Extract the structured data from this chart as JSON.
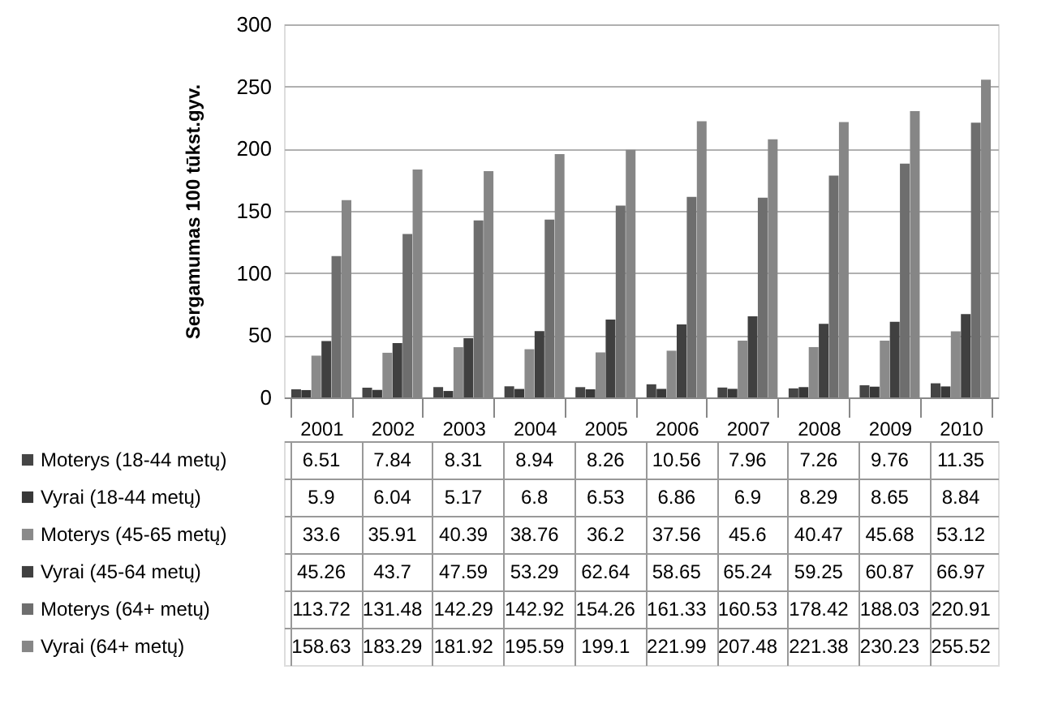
{
  "chart_data": {
    "type": "bar",
    "ylabel": "Sergamumas 100 tūkst.gyv.",
    "categories": [
      "2001",
      "2002",
      "2003",
      "2004",
      "2005",
      "2006",
      "2007",
      "2008",
      "2009",
      "2010"
    ],
    "series": [
      {
        "name": "Moterys (18-44 metų)",
        "color": "#454545",
        "values": [
          6.51,
          7.84,
          8.31,
          8.94,
          8.26,
          10.56,
          7.96,
          7.26,
          9.76,
          11.35
        ]
      },
      {
        "name": "Vyrai (18-44 metų)",
        "color": "#383838",
        "values": [
          5.9,
          6.04,
          5.17,
          6.8,
          6.53,
          6.86,
          6.9,
          8.29,
          8.65,
          8.84
        ]
      },
      {
        "name": "Moterys (45-65 metų)",
        "color": "#8a8a8a",
        "values": [
          33.6,
          35.91,
          40.39,
          38.76,
          36.2,
          37.56,
          45.6,
          40.47,
          45.68,
          53.12
        ]
      },
      {
        "name": "Vyrai (45-64 metų)",
        "color": "#404040",
        "values": [
          45.26,
          43.7,
          47.59,
          53.29,
          62.64,
          58.65,
          65.24,
          59.25,
          60.87,
          66.97
        ]
      },
      {
        "name": "Moterys (64+ metų)",
        "color": "#6e6e6e",
        "values": [
          113.72,
          131.48,
          142.29,
          142.92,
          154.26,
          161.33,
          160.53,
          178.42,
          188.03,
          220.91
        ]
      },
      {
        "name": "Vyrai (64+ metų)",
        "color": "#868686",
        "values": [
          158.63,
          183.29,
          181.92,
          195.59,
          199.1,
          221.99,
          207.48,
          221.38,
          230.23,
          255.52
        ]
      }
    ],
    "ylim": [
      0,
      300
    ],
    "yticks": [
      0,
      50,
      100,
      150,
      200,
      250,
      300
    ],
    "grid": "y",
    "data_labels": true,
    "legend": "bottom left"
  }
}
